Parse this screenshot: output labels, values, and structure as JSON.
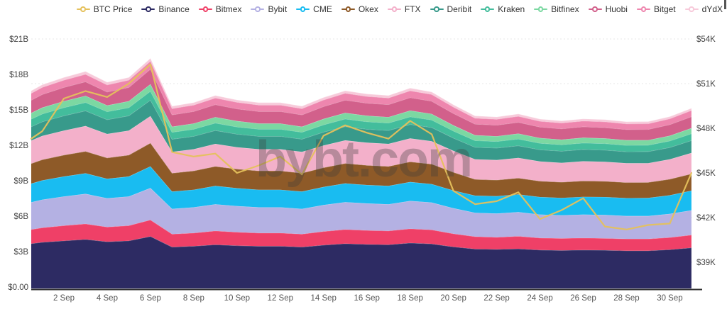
{
  "watermark": "bybt.com",
  "legend_note": "legend items are generated from chart_data series order with BTC Price first",
  "x_axis": {
    "tick_labels": [
      "2 Sep",
      "4 Sep",
      "6 Sep",
      "8 Sep",
      "10 Sep",
      "12 Sep",
      "14 Sep",
      "16 Sep",
      "18 Sep",
      "20 Sep",
      "22 Sep",
      "24 Sep",
      "26 Sep",
      "28 Sep",
      "30 Sep"
    ]
  },
  "left_axis": {
    "ticks": [
      "$21B",
      "$18B",
      "$15B",
      "$12B",
      "$9B",
      "$6B",
      "$3B",
      "$0.00"
    ],
    "tick_values_billions": [
      21,
      18,
      15,
      12,
      9,
      6,
      3,
      0
    ]
  },
  "right_axis": {
    "ticks": [
      "$54K",
      "$51K",
      "$48K",
      "$45K",
      "$42K",
      "$39K"
    ],
    "tick_values_thousands": [
      54,
      51,
      48,
      45,
      42,
      39
    ]
  },
  "chart_data": {
    "type": "area",
    "stacked": true,
    "grid": "dotted-horizontal",
    "legend_position": "top-right",
    "x": [
      "1 Sep",
      "2 Sep",
      "3 Sep",
      "4 Sep",
      "5 Sep",
      "6 Sep",
      "7 Sep",
      "8 Sep",
      "9 Sep",
      "10 Sep",
      "11 Sep",
      "12 Sep",
      "13 Sep",
      "14 Sep",
      "15 Sep",
      "16 Sep",
      "17 Sep",
      "18 Sep",
      "19 Sep",
      "20 Sep",
      "21 Sep",
      "22 Sep",
      "23 Sep",
      "24 Sep",
      "25 Sep",
      "26 Sep",
      "27 Sep",
      "28 Sep",
      "29 Sep",
      "30 Sep",
      "1 Oct"
    ],
    "left_axis_unit": "USD billions (stacked exchange futures value)",
    "left_axis_range_billions": [
      0,
      21
    ],
    "right_axis_unit": "BTC price, USD thousands",
    "right_axis_ticks_thousands": [
      54,
      51,
      48,
      45,
      42,
      39
    ],
    "series": [
      {
        "name": "Binance",
        "color": "#2d2b63",
        "values": [
          3.79,
          3.92,
          4.04,
          3.84,
          3.92,
          4.29,
          3.39,
          3.46,
          3.59,
          3.51,
          3.46,
          3.46,
          3.39,
          3.55,
          3.68,
          3.62,
          3.59,
          3.73,
          3.66,
          3.41,
          3.22,
          3.19,
          3.24,
          3.14,
          3.11,
          3.14,
          3.12,
          3.08,
          3.08,
          3.17,
          3.33
        ]
      },
      {
        "name": "Bitmex",
        "color": "#ef4067",
        "values": [
          1.23,
          1.28,
          1.31,
          1.25,
          1.28,
          1.4,
          1.1,
          1.12,
          1.17,
          1.14,
          1.12,
          1.12,
          1.1,
          1.16,
          1.2,
          1.18,
          1.17,
          1.21,
          1.19,
          1.11,
          1.05,
          1.03,
          1.06,
          1.02,
          1.01,
          1.02,
          1.01,
          1.0,
          1.0,
          1.03,
          1.08
        ]
      },
      {
        "name": "Bybit",
        "color": "#b4b1e3",
        "values": [
          2.38,
          2.47,
          2.54,
          2.42,
          2.47,
          2.69,
          2.13,
          2.17,
          2.25,
          2.21,
          2.17,
          2.17,
          2.13,
          2.23,
          2.31,
          2.28,
          2.25,
          2.35,
          2.3,
          2.15,
          2.02,
          2.0,
          2.04,
          1.98,
          1.96,
          1.98,
          1.97,
          1.93,
          1.93,
          1.99,
          2.09
        ]
      },
      {
        "name": "CME",
        "color": "#19bcf1",
        "values": [
          1.63,
          1.69,
          1.74,
          1.65,
          1.69,
          1.84,
          1.46,
          1.49,
          1.55,
          1.51,
          1.49,
          1.49,
          1.46,
          1.53,
          1.58,
          1.56,
          1.55,
          1.6,
          1.57,
          1.5,
          1.45,
          1.47,
          1.5,
          1.48,
          1.47,
          1.5,
          1.52,
          1.52,
          1.53,
          1.58,
          1.66
        ]
      },
      {
        "name": "Okex",
        "color": "#8e5a28",
        "values": [
          1.75,
          1.81,
          1.86,
          1.77,
          1.81,
          1.98,
          1.57,
          1.6,
          1.66,
          1.62,
          1.6,
          1.6,
          1.57,
          1.64,
          1.7,
          1.67,
          1.66,
          1.72,
          1.69,
          1.55,
          1.38,
          1.37,
          1.39,
          1.35,
          1.33,
          1.35,
          1.34,
          1.32,
          1.32,
          1.36,
          1.43
        ]
      },
      {
        "name": "FTX",
        "color": "#f3b0ca",
        "values": [
          2.01,
          2.08,
          2.14,
          2.03,
          2.08,
          2.27,
          1.79,
          1.83,
          1.9,
          1.85,
          1.83,
          1.83,
          1.79,
          1.88,
          1.95,
          1.91,
          1.9,
          1.97,
          1.94,
          1.81,
          1.7,
          1.69,
          1.71,
          1.66,
          1.64,
          1.66,
          1.65,
          1.63,
          1.63,
          1.68,
          1.76
        ]
      },
      {
        "name": "Deribit",
        "color": "#389a8b",
        "values": [
          1.21,
          1.25,
          1.29,
          1.22,
          1.25,
          1.36,
          1.08,
          1.1,
          1.14,
          1.11,
          1.1,
          1.1,
          1.08,
          1.13,
          1.17,
          1.15,
          1.14,
          1.19,
          1.16,
          1.09,
          1.02,
          1.02,
          1.03,
          1.0,
          0.99,
          1.0,
          0.99,
          0.98,
          0.98,
          1.01,
          1.06
        ]
      },
      {
        "name": "Kraken",
        "color": "#43bd9c",
        "values": [
          0.66,
          0.69,
          0.71,
          0.67,
          0.69,
          0.75,
          0.59,
          0.6,
          0.63,
          0.61,
          0.6,
          0.6,
          0.59,
          0.62,
          0.64,
          0.63,
          0.63,
          0.65,
          0.64,
          0.6,
          0.56,
          0.56,
          0.57,
          0.55,
          0.54,
          0.55,
          0.55,
          0.54,
          0.54,
          0.55,
          0.58
        ]
      },
      {
        "name": "Bitfinex",
        "color": "#7cd8a2",
        "values": [
          0.53,
          0.55,
          0.56,
          0.53,
          0.55,
          0.6,
          0.47,
          0.48,
          0.5,
          0.49,
          0.48,
          0.48,
          0.47,
          0.49,
          0.51,
          0.5,
          0.5,
          0.52,
          0.51,
          0.47,
          0.45,
          0.44,
          0.45,
          0.44,
          0.43,
          0.44,
          0.43,
          0.43,
          0.43,
          0.44,
          0.46
        ]
      },
      {
        "name": "Huobi",
        "color": "#d2608b",
        "values": [
          1.12,
          1.16,
          1.19,
          1.14,
          1.16,
          1.27,
          1.0,
          1.02,
          1.06,
          1.04,
          1.02,
          1.02,
          1.0,
          1.05,
          1.09,
          1.07,
          1.06,
          1.1,
          1.08,
          1.01,
          0.95,
          0.94,
          0.96,
          0.93,
          0.92,
          0.93,
          0.92,
          0.91,
          0.91,
          0.94,
          0.98
        ]
      },
      {
        "name": "Bitget",
        "color": "#ee86ae",
        "values": [
          0.6,
          0.62,
          0.63,
          0.6,
          0.62,
          0.67,
          0.53,
          0.54,
          0.56,
          0.55,
          0.54,
          0.54,
          0.53,
          0.56,
          0.58,
          0.57,
          0.56,
          0.58,
          0.57,
          0.54,
          0.5,
          0.5,
          0.51,
          0.49,
          0.49,
          0.49,
          0.49,
          0.48,
          0.48,
          0.5,
          0.52
        ]
      },
      {
        "name": "dYdX",
        "color": "#f7cada",
        "values": [
          0.22,
          0.23,
          0.24,
          0.22,
          0.23,
          0.25,
          0.2,
          0.2,
          0.21,
          0.2,
          0.2,
          0.2,
          0.2,
          0.21,
          0.21,
          0.21,
          0.21,
          0.22,
          0.21,
          0.2,
          0.19,
          0.19,
          0.19,
          0.18,
          0.18,
          0.18,
          0.18,
          0.18,
          0.18,
          0.18,
          0.19
        ]
      }
    ],
    "btc_price_line": {
      "name": "BTC Price",
      "color": "#e5c15c",
      "axis": "right",
      "values_thousands": [
        47.8,
        50.0,
        50.5,
        50.1,
        51.0,
        52.3,
        46.4,
        46.1,
        46.3,
        45.0,
        45.5,
        46.1,
        44.9,
        47.5,
        48.2,
        47.7,
        47.3,
        48.5,
        47.6,
        43.8,
        42.9,
        43.1,
        43.7,
        41.9,
        42.5,
        43.3,
        41.4,
        41.2,
        41.5,
        41.6,
        45.0
      ]
    }
  }
}
